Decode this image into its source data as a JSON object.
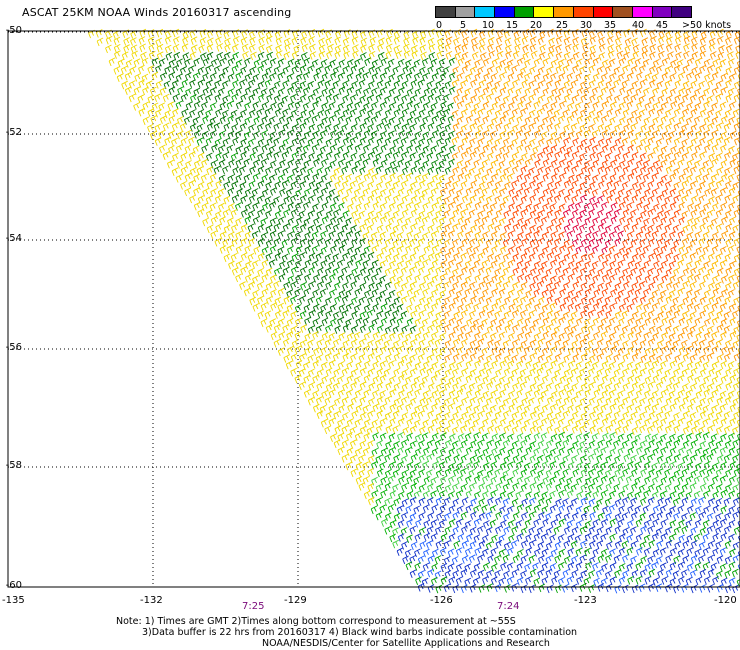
{
  "title": "ASCAT 25KM NOAA Winds 20160317 ascending",
  "legend": {
    "labels": [
      "0",
      "5",
      "10",
      "15",
      "20",
      "25",
      "30",
      "35",
      "40",
      "45",
      ">50 knots"
    ],
    "colors": [
      "#404040",
      "#a0a0a0",
      "#00c8ff",
      "#0000ff",
      "#00a000",
      "#ffff00",
      "#ff9900",
      "#ff4400",
      "#ff0000",
      "#a05020",
      "#ff00ff",
      "#8000c0",
      "#400080"
    ]
  },
  "axes": {
    "lat_labels": [
      "-50",
      "-52",
      "-54",
      "-56",
      "-58",
      "-60"
    ],
    "lon_labels": [
      "-135",
      "-132",
      "-129",
      "-126",
      "-123",
      "-120"
    ]
  },
  "times": [
    "7:25",
    "7:24"
  ],
  "notes": [
    "Note: 1) Times are GMT 2)Times along bottom correspond to measurement at ~55S",
    "3)Data buffer is 22 hrs from 20160317 4) Black wind barbs indicate possible contamination",
    "NOAA/NESDIS/Center for Satellite Applications and Research"
  ]
}
